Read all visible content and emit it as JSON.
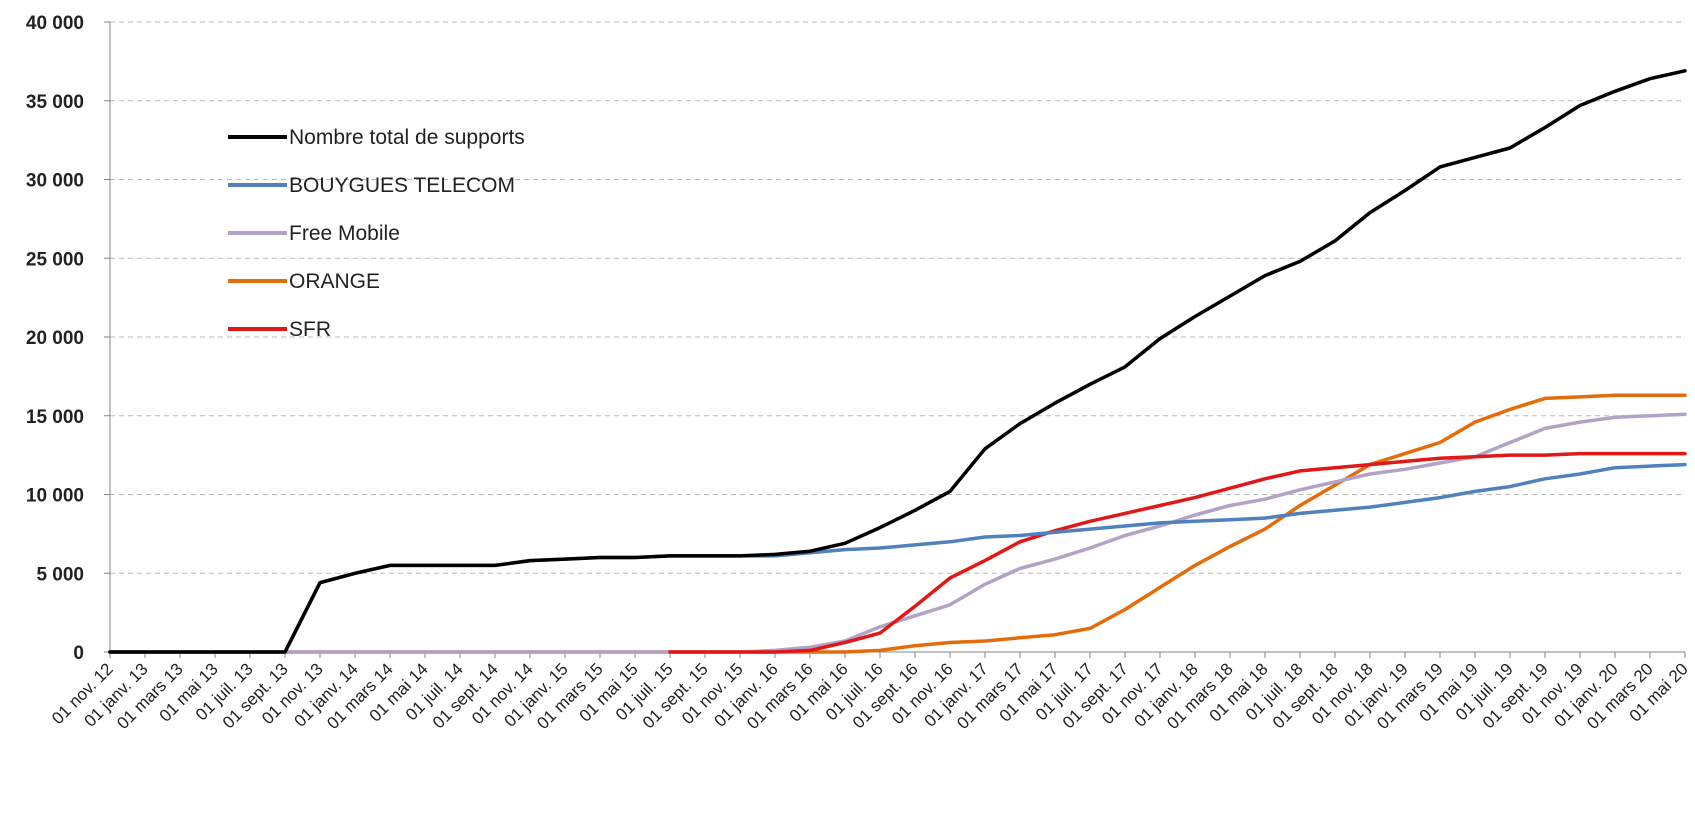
{
  "chart_data": {
    "type": "line",
    "title": "",
    "xlabel": "",
    "ylabel": "",
    "ylim": [
      0,
      40000
    ],
    "yticks": [
      "0",
      "5 000",
      "10 000",
      "15 000",
      "20 000",
      "25 000",
      "30 000",
      "35 000",
      "40 000"
    ],
    "ytick_values": [
      0,
      5000,
      10000,
      15000,
      20000,
      25000,
      30000,
      35000,
      40000
    ],
    "grid": true,
    "legend_position": "upper-left",
    "x_tick_labels": [
      "01 nov. 12",
      "01 janv. 13",
      "01 mars 13",
      "01 mai 13",
      "01 juil. 13",
      "01 sept. 13",
      "01 nov. 13",
      "01 janv. 14",
      "01 mars 14",
      "01 mai 14",
      "01 juil. 14",
      "01 sept. 14",
      "01 nov. 14",
      "01 janv. 15",
      "01 mars 15",
      "01 mai 15",
      "01 juil. 15",
      "01 sept. 15",
      "01 nov. 15",
      "01 janv. 16",
      "01 mars 16",
      "01 mai 16",
      "01 juil. 16",
      "01 sept. 16",
      "01 nov. 16",
      "01 janv. 17",
      "01 mars 17",
      "01 mai 17",
      "01 juil. 17",
      "01 sept. 17",
      "01 nov. 17",
      "01 janv. 18",
      "01 mars 18",
      "01 mai 18",
      "01 juil. 18",
      "01 sept. 18",
      "01 nov. 18",
      "01 janv. 19",
      "01 mars 19",
      "01 mai 19",
      "01 juil. 19",
      "01 sept. 19",
      "01 nov. 19",
      "01 janv. 20",
      "01 mars 20",
      "01 mai 20"
    ],
    "series": [
      {
        "name": "Nombre total de supports",
        "color": "#000000",
        "values": [
          0,
          0,
          0,
          0,
          0,
          0,
          4400,
          5000,
          5500,
          5500,
          5500,
          5500,
          5800,
          5900,
          6000,
          6000,
          6100,
          6100,
          6100,
          6200,
          6400,
          6900,
          7900,
          9000,
          10200,
          12900,
          14500,
          15800,
          17000,
          18100,
          19900,
          21300,
          22600,
          23900,
          24800,
          26100,
          27900,
          29300,
          30800,
          31400,
          32000,
          33300,
          34700,
          35600,
          36400,
          36900
        ]
      },
      {
        "name": "BOUYGUES TELECOM",
        "color": "#4f81bd",
        "values": [
          0,
          0,
          0,
          0,
          0,
          0,
          4400,
          5000,
          5500,
          5500,
          5500,
          5500,
          5800,
          5900,
          6000,
          6000,
          6100,
          6100,
          6100,
          6100,
          6300,
          6500,
          6600,
          6800,
          7000,
          7300,
          7400,
          7600,
          7800,
          8000,
          8200,
          8300,
          8400,
          8500,
          8800,
          9000,
          9200,
          9500,
          9800,
          10200,
          10500,
          11000,
          11300,
          11700,
          11800,
          11900
        ]
      },
      {
        "name": "Free Mobile",
        "color": "#b3a2c7",
        "values": [
          0,
          0,
          0,
          0,
          0,
          0,
          0,
          0,
          0,
          0,
          0,
          0,
          0,
          0,
          0,
          0,
          0,
          0,
          0,
          100,
          300,
          700,
          1600,
          2300,
          3000,
          4300,
          5300,
          5900,
          6600,
          7400,
          8000,
          8700,
          9300,
          9700,
          10300,
          10800,
          11300,
          11600,
          12000,
          12400,
          13300,
          14200,
          14600,
          14900,
          15000,
          15100
        ]
      },
      {
        "name": "ORANGE",
        "color": "#e46c0a",
        "values": [
          0,
          0,
          0,
          0,
          0,
          0,
          0,
          0,
          0,
          0,
          0,
          0,
          0,
          0,
          0,
          0,
          0,
          0,
          0,
          0,
          0,
          0,
          100,
          400,
          600,
          700,
          900,
          1100,
          1500,
          2700,
          4100,
          5500,
          6700,
          7800,
          9300,
          10600,
          11900,
          12600,
          13300,
          14600,
          15400,
          16100,
          16200,
          16300,
          16300,
          16300
        ]
      },
      {
        "name": "SFR",
        "color": "#e01818",
        "values": [
          null,
          null,
          null,
          null,
          null,
          null,
          null,
          null,
          null,
          null,
          null,
          null,
          null,
          null,
          null,
          null,
          0,
          0,
          0,
          0,
          100,
          600,
          1200,
          2900,
          4700,
          5800,
          7000,
          7700,
          8300,
          8800,
          9300,
          9800,
          10400,
          11000,
          11500,
          11700,
          11900,
          12100,
          12300,
          12400,
          12500,
          12500,
          12600,
          12600,
          12600,
          12600
        ]
      }
    ]
  }
}
